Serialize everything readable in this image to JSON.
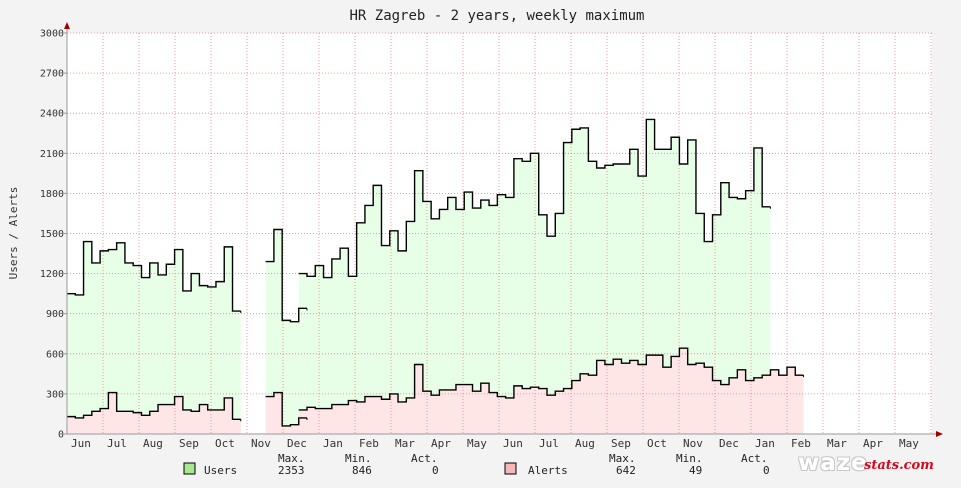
{
  "chart_data": {
    "type": "area",
    "title": "HR Zagreb - 2 years, weekly maximum",
    "ylabel": "Users / Alerts",
    "ylim": [
      0,
      3000
    ],
    "yticks": [
      0,
      300,
      600,
      900,
      1200,
      1500,
      1800,
      2100,
      2400,
      2700,
      3000
    ],
    "month_labels": [
      "Jun",
      "Jul",
      "Aug",
      "Sep",
      "Oct",
      "Nov",
      "Dec",
      "Jan",
      "Feb",
      "Mar",
      "Apr",
      "May",
      "Jun",
      "Jul",
      "Aug",
      "Sep",
      "Oct",
      "Nov",
      "Dec",
      "Jan",
      "Feb",
      "Mar",
      "Apr",
      "May"
    ],
    "x_unit": "week index (0 = start of Jun, ~4.35 weeks per month)",
    "series": [
      {
        "name": "Users",
        "color": "#000000",
        "fill": "#e6ffe6",
        "segments": [
          [
            [
              0,
              1050
            ],
            [
              1,
              1040
            ],
            [
              2,
              1440
            ],
            [
              3,
              1280
            ],
            [
              4,
              1370
            ],
            [
              5,
              1380
            ],
            [
              6,
              1430
            ],
            [
              7,
              1280
            ],
            [
              8,
              1260
            ],
            [
              9,
              1170
            ],
            [
              10,
              1280
            ],
            [
              11,
              1190
            ],
            [
              12,
              1270
            ],
            [
              13,
              1380
            ],
            [
              14,
              1070
            ],
            [
              15,
              1200
            ],
            [
              16,
              1110
            ],
            [
              17,
              1100
            ],
            [
              18,
              1140
            ],
            [
              19,
              1400
            ],
            [
              20,
              920
            ]
          ],
          [
            [
              24,
              1290
            ],
            [
              25,
              1530
            ],
            [
              26,
              850
            ],
            [
              27,
              840
            ],
            [
              28,
              940
            ]
          ],
          [
            [
              28,
              1200
            ],
            [
              29,
              1180
            ],
            [
              30,
              1260
            ],
            [
              31,
              1170
            ],
            [
              32,
              1310
            ],
            [
              33,
              1390
            ],
            [
              34,
              1180
            ],
            [
              35,
              1580
            ],
            [
              36,
              1710
            ],
            [
              37,
              1860
            ],
            [
              38,
              1410
            ],
            [
              39,
              1520
            ],
            [
              40,
              1370
            ],
            [
              41,
              1590
            ],
            [
              42,
              1970
            ],
            [
              43,
              1740
            ],
            [
              44,
              1610
            ],
            [
              45,
              1680
            ],
            [
              46,
              1770
            ],
            [
              47,
              1680
            ],
            [
              48,
              1810
            ],
            [
              49,
              1690
            ],
            [
              50,
              1750
            ],
            [
              51,
              1710
            ],
            [
              52,
              1790
            ],
            [
              53,
              1770
            ],
            [
              54,
              2060
            ],
            [
              55,
              2040
            ],
            [
              56,
              2100
            ],
            [
              57,
              1640
            ],
            [
              58,
              1480
            ],
            [
              59,
              1650
            ],
            [
              60,
              2180
            ],
            [
              61,
              2280
            ],
            [
              62,
              2290
            ],
            [
              63,
              2040
            ],
            [
              64,
              1990
            ],
            [
              65,
              2010
            ],
            [
              66,
              2020
            ],
            [
              67,
              2020
            ],
            [
              68,
              2130
            ],
            [
              69,
              1930
            ],
            [
              70,
              2353
            ],
            [
              71,
              2130
            ],
            [
              72,
              2130
            ],
            [
              73,
              2220
            ],
            [
              74,
              2020
            ],
            [
              75,
              2200
            ],
            [
              76,
              1650
            ],
            [
              77,
              1440
            ],
            [
              78,
              1640
            ],
            [
              79,
              1880
            ],
            [
              80,
              1770
            ],
            [
              81,
              1760
            ],
            [
              82,
              1820
            ],
            [
              83,
              2140
            ],
            [
              84,
              1700
            ]
          ]
        ],
        "stats": {
          "max": "2353",
          "min": "846",
          "act": "0"
        }
      },
      {
        "name": "Alerts",
        "color": "#000000",
        "fill": "#ffe6e6",
        "segments": [
          [
            [
              0,
              130
            ],
            [
              1,
              120
            ],
            [
              2,
              140
            ],
            [
              3,
              170
            ],
            [
              4,
              190
            ],
            [
              5,
              310
            ],
            [
              6,
              170
            ],
            [
              7,
              170
            ],
            [
              8,
              160
            ],
            [
              9,
              140
            ],
            [
              10,
              170
            ],
            [
              11,
              220
            ],
            [
              12,
              220
            ],
            [
              13,
              280
            ],
            [
              14,
              180
            ],
            [
              15,
              170
            ],
            [
              16,
              220
            ],
            [
              17,
              180
            ],
            [
              18,
              180
            ],
            [
              19,
              270
            ],
            [
              20,
              110
            ]
          ],
          [
            [
              24,
              280
            ],
            [
              25,
              310
            ],
            [
              26,
              60
            ],
            [
              27,
              70
            ],
            [
              28,
              120
            ]
          ],
          [
            [
              28,
              180
            ],
            [
              29,
              200
            ],
            [
              30,
              190
            ],
            [
              31,
              190
            ],
            [
              32,
              220
            ],
            [
              33,
              220
            ],
            [
              34,
              250
            ],
            [
              35,
              240
            ],
            [
              36,
              280
            ],
            [
              37,
              280
            ],
            [
              38,
              260
            ],
            [
              39,
              300
            ],
            [
              40,
              240
            ],
            [
              41,
              270
            ],
            [
              42,
              520
            ],
            [
              43,
              320
            ],
            [
              44,
              290
            ],
            [
              45,
              330
            ],
            [
              46,
              330
            ],
            [
              47,
              370
            ],
            [
              48,
              370
            ],
            [
              49,
              320
            ],
            [
              50,
              380
            ],
            [
              51,
              310
            ],
            [
              52,
              280
            ],
            [
              53,
              270
            ],
            [
              54,
              360
            ],
            [
              55,
              340
            ],
            [
              56,
              350
            ],
            [
              57,
              340
            ],
            [
              58,
              290
            ],
            [
              59,
              320
            ],
            [
              60,
              340
            ],
            [
              61,
              400
            ],
            [
              62,
              450
            ],
            [
              63,
              440
            ],
            [
              64,
              550
            ],
            [
              65,
              520
            ],
            [
              66,
              560
            ],
            [
              67,
              530
            ],
            [
              68,
              550
            ],
            [
              69,
              520
            ],
            [
              70,
              590
            ],
            [
              71,
              590
            ],
            [
              72,
              500
            ],
            [
              73,
              580
            ],
            [
              74,
              642
            ],
            [
              75,
              520
            ],
            [
              76,
              530
            ],
            [
              77,
              500
            ],
            [
              78,
              400
            ],
            [
              79,
              370
            ],
            [
              80,
              420
            ],
            [
              81,
              480
            ],
            [
              82,
              400
            ],
            [
              83,
              420
            ],
            [
              84,
              440
            ],
            [
              85,
              480
            ],
            [
              86,
              440
            ],
            [
              87,
              500
            ],
            [
              88,
              440
            ]
          ]
        ],
        "stats": {
          "max": "642",
          "min": "49",
          "act": "0"
        }
      }
    ],
    "grid": true,
    "legend": "bottom"
  },
  "legend": {
    "hdr_max": "Max.",
    "hdr_min": "Min.",
    "hdr_act": "Act.",
    "users_label": "Users",
    "users_max": "2353",
    "users_min": "846",
    "users_act": "0",
    "users_color": "#a8e890",
    "alerts_label": "Alerts",
    "alerts_max": "642",
    "alerts_min": "49",
    "alerts_act": "0",
    "alerts_color": "#f5b8b8"
  },
  "logo": {
    "brand": "waze",
    "suffix": "stats.com"
  }
}
